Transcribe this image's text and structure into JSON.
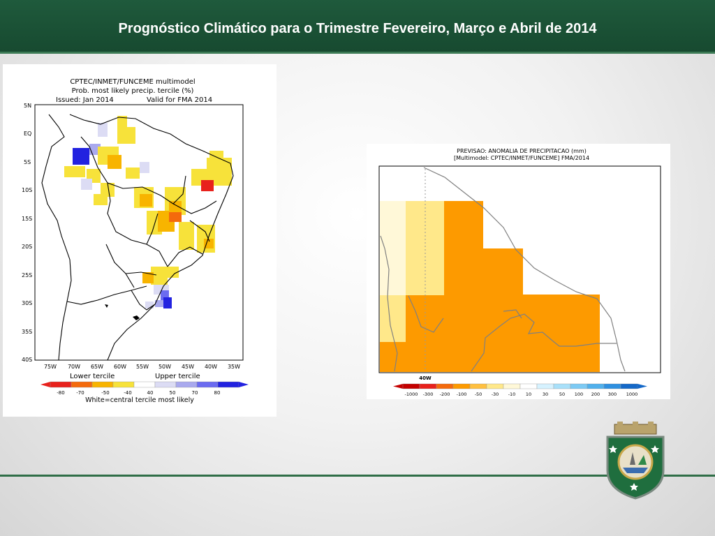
{
  "slide": {
    "title": "Prognóstico Climático para o Trimestre Fevereiro, Março e Abril de 2014"
  },
  "map1": {
    "header": [
      "CPTEC/INMET/FUNCEME multimodel",
      "Prob. most likely precip. tercile (%)",
      "Issued: Jan 2014",
      "Valid for FMA 2014"
    ],
    "y_ticks": [
      "5N",
      "EQ",
      "5S",
      "10S",
      "15S",
      "20S",
      "25S",
      "30S",
      "35S",
      "40S"
    ],
    "x_ticks": [
      "75W",
      "70W",
      "65W",
      "60W",
      "55W",
      "50W",
      "45W",
      "40W",
      "35W"
    ],
    "lower_label": "Lower tercile",
    "upper_label": "Upper tercile",
    "scale_values": [
      "-80",
      "-70",
      "-50",
      "-40",
      "40",
      "50",
      "70",
      "80"
    ],
    "scale_colors": [
      "#e8211c",
      "#f46a0c",
      "#f8b400",
      "#f7e23a",
      "#ffffff",
      "#dcdcf4",
      "#a9a9ee",
      "#6b6bf0",
      "#2222e0"
    ],
    "footer": "White=central tercile most likely"
  },
  "map2": {
    "header": [
      "PREVISAO: ANOMALIA DE PRECIPITACAO (mm)",
      "[Multimodel: CPTEC/INMET/FUNCEME] FMA/2014"
    ],
    "x_tick": "40W",
    "scale_values": [
      "-1000",
      "-300",
      "-200",
      "-100",
      "-50",
      "-30",
      "-10",
      "10",
      "30",
      "50",
      "100",
      "200",
      "300",
      "1000"
    ],
    "scale_colors": [
      "#c40000",
      "#e8211c",
      "#f46a0c",
      "#fd9a00",
      "#ffc040",
      "#ffe88a",
      "#fff8d8",
      "#ffffff",
      "#d6f2ff",
      "#a8e0fa",
      "#7ccaf4",
      "#50b0ec",
      "#2e90e0",
      "#1468c8"
    ]
  },
  "colors": {
    "header_green": "#1f5a3c",
    "orange": "#fd9a00"
  }
}
